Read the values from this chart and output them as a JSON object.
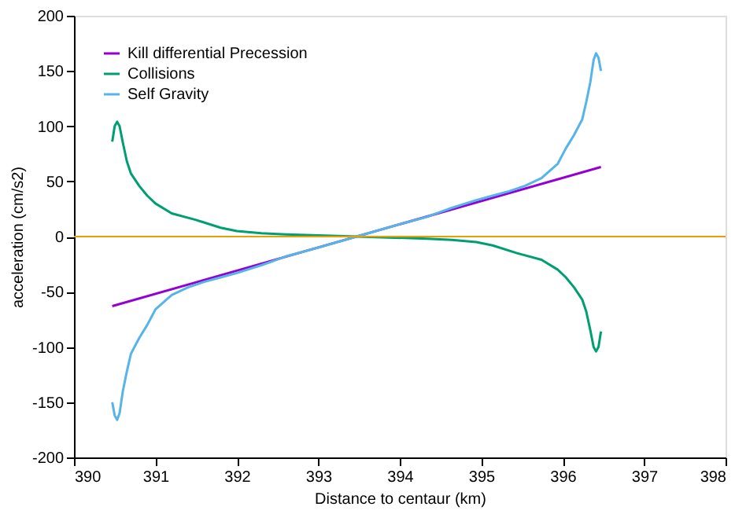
{
  "chart_data": {
    "type": "line",
    "xlabel": "Distance to centaur (km)",
    "ylabel": "acceleration (cm/s2)",
    "xlim": [
      390,
      398
    ],
    "xticks": [
      390,
      391,
      392,
      393,
      394,
      395,
      396,
      397,
      398
    ],
    "ylim": [
      -200,
      200
    ],
    "yticks": [
      -200,
      -150,
      -100,
      -50,
      0,
      50,
      100,
      150,
      200
    ],
    "grid": false,
    "legend": "top left",
    "marker": "none",
    "line_style": "solid",
    "ref_lines": [
      {
        "axis": "y",
        "value": 0,
        "color": "#e6a000"
      }
    ],
    "series": [
      {
        "name": "Kill differential Precession",
        "color": "#9400d3",
        "x": [
          390.47,
          396.47
        ],
        "values": [
          -63,
          63
        ]
      },
      {
        "name": "Collisions",
        "color": "#009e73",
        "x": [
          390.47,
          390.5,
          390.53,
          390.56,
          390.6,
          390.65,
          390.7,
          390.8,
          390.9,
          391.0,
          391.2,
          391.5,
          391.8,
          392.0,
          392.3,
          392.6,
          393.0,
          393.47,
          393.94,
          394.34,
          394.64,
          394.94,
          395.14,
          395.44,
          395.74,
          395.94,
          396.04,
          396.14,
          396.24,
          396.29,
          396.34,
          396.38,
          396.41,
          396.44,
          396.47
        ],
        "values": [
          86,
          100,
          104,
          100,
          85,
          68,
          57,
          46,
          37,
          30,
          21,
          15,
          8,
          5,
          3,
          2,
          1,
          0,
          -1,
          -2,
          -3,
          -5,
          -8,
          -15,
          -21,
          -30,
          -37,
          -46,
          -57,
          -68,
          -85,
          -100,
          -104,
          -100,
          -86
        ]
      },
      {
        "name": "Self Gravity",
        "color": "#56b4e9",
        "x": [
          390.47,
          390.5,
          390.53,
          390.56,
          390.6,
          390.65,
          390.7,
          390.8,
          390.9,
          391.0,
          391.2,
          391.4,
          391.6,
          391.8,
          392.0,
          392.3,
          392.6,
          393.0,
          393.47,
          393.94,
          394.34,
          394.64,
          394.94,
          395.14,
          395.34,
          395.54,
          395.74,
          395.94,
          396.04,
          396.14,
          396.24,
          396.29,
          396.34,
          396.38,
          396.41,
          396.44,
          396.47
        ],
        "values": [
          -150,
          -162,
          -166,
          -160,
          -140,
          -122,
          -106,
          -92,
          -80,
          -66,
          -53,
          -46,
          -41,
          -37,
          -33,
          -26,
          -18,
          -10,
          0,
          10,
          18,
          26,
          33,
          37,
          41,
          46,
          53,
          66,
          80,
          92,
          106,
          122,
          140,
          160,
          166,
          162,
          150
        ]
      }
    ]
  }
}
